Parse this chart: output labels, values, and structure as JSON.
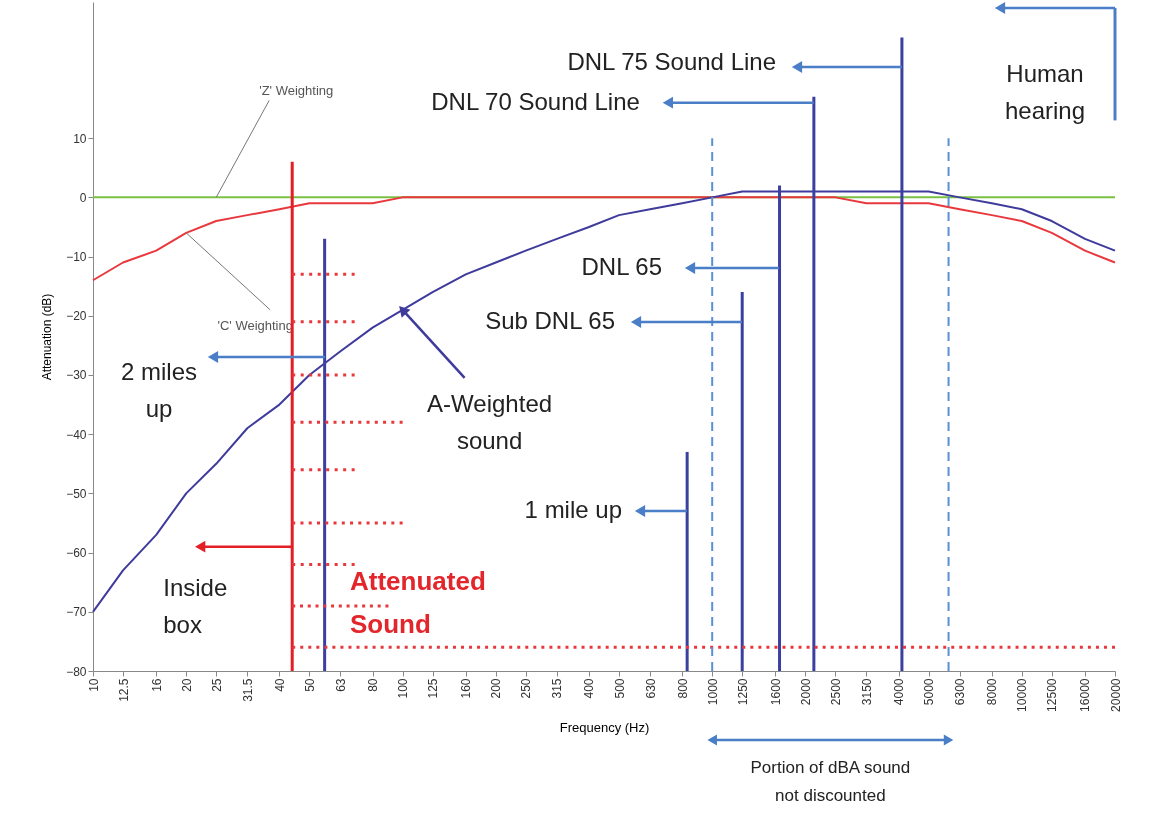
{
  "chart_data": {
    "type": "line",
    "xlabel": "Frequency (Hz)",
    "ylabel": "Attenuation (dB)",
    "log": "x",
    "x": [
      10,
      12.5,
      16,
      20,
      25,
      31.5,
      40,
      50,
      63,
      80,
      100,
      125,
      160,
      200,
      250,
      315,
      400,
      500,
      630,
      800,
      1000,
      1250,
      1600,
      2000,
      2500,
      3150,
      4000,
      5000,
      6300,
      8000,
      10000,
      12500,
      16000,
      20000
    ],
    "xlim": [
      10,
      20000
    ],
    "ylim": [
      -80,
      33
    ],
    "xticks": [
      10,
      12.5,
      16,
      20,
      25,
      31.5,
      40,
      50,
      63,
      80,
      100,
      125,
      160,
      200,
      250,
      315,
      400,
      500,
      630,
      800,
      1000,
      1250,
      1600,
      2000,
      2500,
      3150,
      4000,
      5000,
      6300,
      8000,
      10000,
      12500,
      16000,
      20000
    ],
    "yticks": [
      -80,
      -70,
      -60,
      -50,
      -40,
      -30,
      -20,
      -10,
      0,
      10
    ],
    "series": [
      {
        "name": "'Z' Weighting",
        "color": "#7ac143",
        "values": [
          0,
          0,
          0,
          0,
          0,
          0,
          0,
          0,
          0,
          0,
          0,
          0,
          0,
          0,
          0,
          0,
          0,
          0,
          0,
          0,
          0,
          0,
          0,
          0,
          0,
          0,
          0,
          0,
          0,
          0,
          0,
          0,
          0,
          0
        ]
      },
      {
        "name": "'C' Weighting",
        "color": "#e8383d",
        "values": [
          -14,
          -11,
          -9,
          -6,
          -4,
          -3,
          -2,
          -1,
          -1,
          -1,
          0,
          0,
          0,
          0,
          0,
          0,
          0,
          0,
          0,
          0,
          0,
          0,
          0,
          0,
          0,
          -1,
          -1,
          -1,
          -2,
          -3,
          -4,
          -6,
          -9,
          -11
        ]
      },
      {
        "name": "A-Weighted sound",
        "color": "#3f3b9c",
        "values": [
          -70,
          -63,
          -57,
          -50,
          -45,
          -39,
          -35,
          -30,
          -26,
          -22,
          -19,
          -16,
          -13,
          -11,
          -9,
          -7,
          -5,
          -3,
          -2,
          -1,
          0,
          1,
          1,
          1,
          1,
          1,
          1,
          1,
          0,
          -1,
          -2,
          -4,
          -7,
          -9
        ]
      },
      {
        "color": "#e31e24",
        "x": [
          44,
          44
        ],
        "values": [
          -80,
          6
        ]
      },
      {
        "color": "#3b3f9f",
        "x": [
          56,
          56
        ],
        "values": [
          -80,
          -7
        ]
      },
      {
        "color": "#3b3f9f",
        "x": [
          830,
          830
        ],
        "values": [
          -80,
          -43
        ]
      },
      {
        "color": "#3b3f9f",
        "x": [
          1250,
          1250
        ],
        "values": [
          -80,
          -16
        ]
      },
      {
        "color": "#3b3f9f",
        "x": [
          1650,
          1650
        ],
        "values": [
          -80,
          2
        ]
      },
      {
        "color": "#3b3f9f",
        "x": [
          2130,
          2130
        ],
        "values": [
          -80,
          17
        ]
      },
      {
        "color": "#3b3f9f",
        "x": [
          4100,
          4100
        ],
        "values": [
          -80,
          27
        ]
      },
      {
        "color": "#4a7ec6",
        "x": [
          20000,
          20000
        ],
        "values": [
          13,
          32
        ]
      },
      {
        "color": "#e8383d",
        "line_style": "dotted",
        "x": [
          44,
          70
        ],
        "values": [
          -13,
          -13
        ]
      },
      {
        "color": "#e8383d",
        "line_style": "dotted",
        "x": [
          44,
          70
        ],
        "values": [
          -21,
          -21
        ]
      },
      {
        "color": "#e8383d",
        "line_style": "dotted",
        "x": [
          44,
          70
        ],
        "values": [
          -30,
          -30
        ]
      },
      {
        "color": "#e8383d",
        "line_style": "dotted",
        "x": [
          44,
          100
        ],
        "values": [
          -38,
          -38
        ]
      },
      {
        "color": "#e8383d",
        "line_style": "dotted",
        "x": [
          44,
          70
        ],
        "values": [
          -46,
          -46
        ]
      },
      {
        "color": "#e8383d",
        "line_style": "dotted",
        "x": [
          44,
          100
        ],
        "values": [
          -55,
          -55
        ]
      },
      {
        "color": "#e8383d",
        "line_style": "dotted",
        "x": [
          44,
          70
        ],
        "values": [
          -62,
          -62
        ]
      },
      {
        "color": "#e8383d",
        "line_style": "dotted",
        "x": [
          44,
          90
        ],
        "values": [
          -69,
          -69
        ]
      },
      {
        "color": "#e8383d",
        "line_style": "dotted",
        "x": [
          44,
          20000
        ],
        "values": [
          -76,
          -76
        ]
      }
    ],
    "ref_lines": [
      {
        "axis": "x",
        "value": 1000,
        "color": "#5b8fd6",
        "line_style": "dashed"
      },
      {
        "axis": "x",
        "value": 5800,
        "color": "#5b8fd6",
        "line_style": "dashed"
      }
    ],
    "annotations": [
      "Attenuated Sound",
      "Portion of dBA sound not discounted",
      "DNL 75 Sound Line",
      {
        "text": "DNL 70 Sound Line",
        "x": 2130,
        "y": 16
      },
      "DNL 65",
      "Sub DNL 65",
      "1 mile up",
      "2 miles up",
      {
        "text": "Inside box",
        "x": 44,
        "y": -59
      },
      "Human hearing"
    ]
  }
}
